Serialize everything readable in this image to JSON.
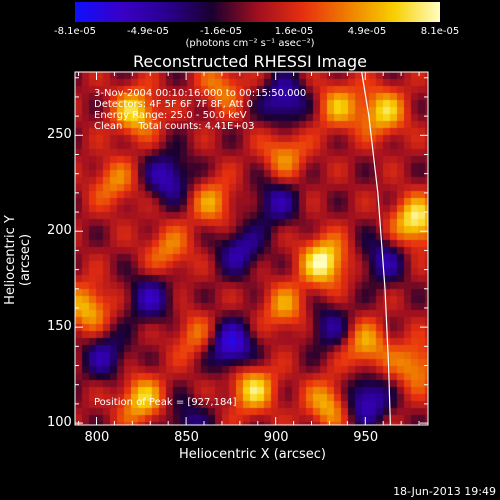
{
  "colorbar": {
    "tick_labels": [
      "-8.1e-05",
      "-4.9e-05",
      "-1.6e-05",
      "1.6e-05",
      "4.9e-05",
      "8.1e-05"
    ],
    "units": "(photons cm⁻² s⁻¹ asec⁻²)",
    "colors": [
      "#1010ff",
      "#3a00c8",
      "#2a0090",
      "#1a0030",
      "#a01020",
      "#e83010",
      "#f08000",
      "#f8d000",
      "#ffffc0"
    ]
  },
  "annotations": {
    "line1": "3-Nov-2004 00:10:16.000 to 00:15:50.000",
    "line2": "Detectors: 4F 5F 6F 7F 8F, Att 0",
    "line3": "Energy Range: 25.0 - 50.0 keV",
    "line4": "Clean     Total counts: 4.41E+03",
    "peak": "Position of Peak = [927,184]"
  },
  "timestamp": "18-Jun-2013 19:49",
  "chart_data": {
    "type": "heatmap",
    "title": "Reconstructed RHESSI Image",
    "xlabel": "Heliocentric X (arcsec)",
    "ylabel": "Heliocentric Y (arcsec)",
    "xlim": [
      788,
      985
    ],
    "ylim": [
      99,
      283
    ],
    "x_ticks": [
      800,
      850,
      900,
      950
    ],
    "y_ticks": [
      100,
      150,
      200,
      250
    ],
    "x_tick_labels": [
      "800",
      "850",
      "900",
      "950"
    ],
    "y_tick_labels": [
      "100",
      "150",
      "200",
      "250"
    ],
    "colorbar_range": [
      -8.1e-05,
      8.1e-05
    ],
    "peak_position": [
      927,
      184
    ],
    "limb": [
      [
        948,
        283
      ],
      [
        952,
        260
      ],
      [
        957,
        220
      ],
      [
        961,
        170
      ],
      [
        963,
        130
      ],
      [
        964,
        99
      ]
    ],
    "sources": [
      {
        "x": 927,
        "y": 184,
        "amp": 1.0
      },
      {
        "x": 978,
        "y": 205,
        "amp": 0.95
      },
      {
        "x": 822,
        "y": 262,
        "amp": 0.8
      },
      {
        "x": 825,
        "y": 112,
        "amp": 0.75
      },
      {
        "x": 887,
        "y": 118,
        "amp": 0.8
      },
      {
        "x": 795,
        "y": 160,
        "amp": 0.7
      },
      {
        "x": 960,
        "y": 262,
        "amp": 0.75
      },
      {
        "x": 935,
        "y": 265,
        "amp": 0.6
      },
      {
        "x": 905,
        "y": 240,
        "amp": 0.55
      },
      {
        "x": 865,
        "y": 215,
        "amp": 0.55
      },
      {
        "x": 840,
        "y": 190,
        "amp": 0.5
      },
      {
        "x": 950,
        "y": 140,
        "amp": 0.65
      },
      {
        "x": 978,
        "y": 130,
        "amp": 0.6
      },
      {
        "x": 930,
        "y": 110,
        "amp": 0.7
      },
      {
        "x": 905,
        "y": 160,
        "amp": 0.55
      },
      {
        "x": 855,
        "y": 145,
        "amp": 0.45
      },
      {
        "x": 810,
        "y": 225,
        "amp": 0.5
      },
      {
        "x": 870,
        "y": 275,
        "amp": 0.5
      },
      {
        "x": 875,
        "y": 140,
        "amp": -0.9
      },
      {
        "x": 950,
        "y": 112,
        "amp": -0.8
      },
      {
        "x": 840,
        "y": 228,
        "amp": -0.7
      },
      {
        "x": 905,
        "y": 268,
        "amp": -0.7
      },
      {
        "x": 880,
        "y": 190,
        "amp": -0.6
      },
      {
        "x": 830,
        "y": 165,
        "amp": -0.6
      },
      {
        "x": 960,
        "y": 185,
        "amp": -0.55
      },
      {
        "x": 900,
        "y": 215,
        "amp": -0.55
      },
      {
        "x": 805,
        "y": 135,
        "amp": -0.55
      },
      {
        "x": 930,
        "y": 150,
        "amp": -0.5
      },
      {
        "x": 850,
        "y": 100,
        "amp": -0.45
      }
    ]
  }
}
